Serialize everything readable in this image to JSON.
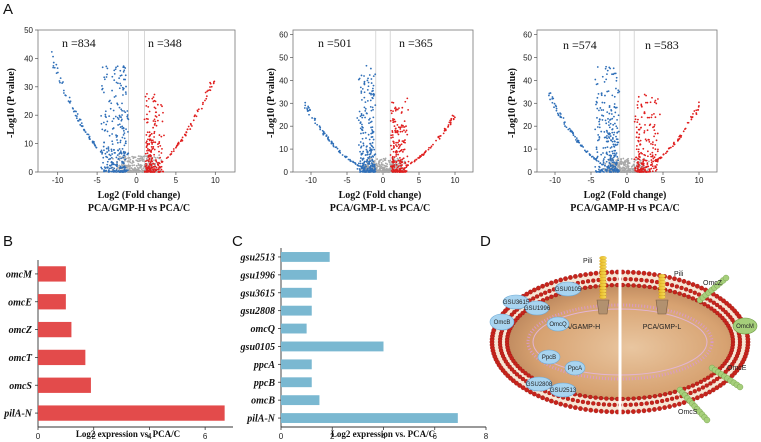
{
  "panel_labels": {
    "a": "A",
    "b": "B",
    "c": "C",
    "d": "D"
  },
  "colors": {
    "down": "#2f6fb8",
    "up": "#e01e1e",
    "ns": "#a8a8a8",
    "bar_b": "#e34b4b",
    "bar_c": "#7ab8d1"
  },
  "chart_data": [
    {
      "id": "volcano1",
      "type": "scatter",
      "title": "PCA/GMP-H vs PCA/C",
      "xlabel": "Log2 (Fold change)",
      "ylabel": "-Log10 (P value)",
      "xlim": [
        -12.5,
        12.5
      ],
      "ylim": [
        0,
        50
      ],
      "xticks": [
        -10,
        -5,
        0,
        5,
        10
      ],
      "yticks": [
        0,
        10,
        20,
        30,
        40,
        50
      ],
      "n_down": "n =834",
      "n_up": "n =348",
      "arc_scale": 0.36,
      "spread_left": [
        3,
        11
      ],
      "spread_right": [
        2,
        10
      ]
    },
    {
      "id": "volcano2",
      "type": "scatter",
      "title": "PCA/GMP-L vs PCA/C",
      "xlabel": "Log2 (Fold change)",
      "ylabel": "-Log10 (P value)",
      "xlim": [
        -12.5,
        12.5
      ],
      "ylim": [
        0,
        62
      ],
      "xticks": [
        -10,
        -5,
        0,
        5,
        10
      ],
      "yticks": [
        0,
        10,
        20,
        30,
        40,
        50,
        60
      ],
      "n_down": "n =501",
      "n_up": "n =365",
      "arc_scale": 0.26,
      "spread_left": [
        2,
        8
      ],
      "spread_right": [
        2,
        10
      ]
    },
    {
      "id": "volcano3",
      "type": "scatter",
      "title": "PCA/GAMP-H vs PCA/C",
      "xlabel": "Log2 (Fold change)",
      "ylabel": "-Log10 (P value)",
      "xlim": [
        -12.5,
        12.5
      ],
      "ylim": [
        0,
        62
      ],
      "xticks": [
        -10,
        -5,
        0,
        5,
        10
      ],
      "yticks": [
        0,
        10,
        20,
        30,
        40,
        50,
        60
      ],
      "n_down": "n =574",
      "n_up": "n =583",
      "arc_scale": 0.3,
      "spread_left": [
        3,
        12
      ],
      "spread_right": [
        3,
        11
      ]
    },
    {
      "id": "barB",
      "type": "bar",
      "orientation": "horizontal",
      "xlabel": "Log2 expression vs. PCA/C",
      "categories": [
        "omcM",
        "omcE",
        "omcZ",
        "omcT",
        "omcS",
        "pilA-N"
      ],
      "values": [
        1.0,
        1.0,
        1.2,
        1.7,
        1.9,
        6.7
      ],
      "xlim": [
        0,
        7
      ],
      "xticks": [
        0,
        2,
        4,
        6
      ]
    },
    {
      "id": "barC",
      "type": "bar",
      "orientation": "horizontal",
      "xlabel": "Log2 expression vs. PCA/C",
      "categories": [
        "gsu2513",
        "gsu1996",
        "gsu3615",
        "gsu2808",
        "omcQ",
        "gsu0105",
        "ppcA",
        "ppcB",
        "omcB",
        "pilA-N"
      ],
      "values": [
        1.9,
        1.4,
        1.2,
        1.2,
        1.0,
        4.0,
        1.2,
        1.2,
        1.5,
        6.9
      ],
      "xlim": [
        0,
        8
      ],
      "xticks": [
        0,
        2,
        4,
        6,
        8
      ]
    }
  ],
  "diagram": {
    "left_label": "PCA/GAMP-H",
    "right_label": "PCA/GMP-L",
    "pili_left": "Pili",
    "pili_right": "Pili",
    "proteins_left": [
      "GSU3615",
      "GSU0105",
      "GSU1996",
      "OmcB",
      "OmcQ",
      "PpcB",
      "PpcA",
      "GSU2808",
      "GSU2513"
    ],
    "proteins_right": [
      "OmcZ",
      "OmcM",
      "OmcE",
      "OmcS"
    ]
  }
}
